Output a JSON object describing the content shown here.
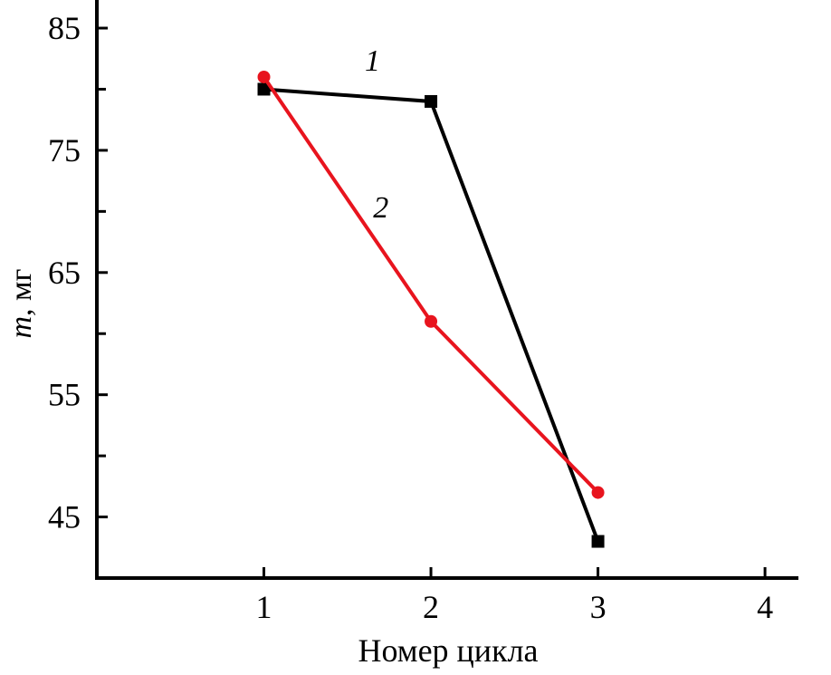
{
  "chart_data": {
    "type": "line",
    "title": "",
    "xlabel": "Номер цикла",
    "ylabel_italic": "m",
    "ylabel_rest": ", мг",
    "xlim": [
      0,
      4.2
    ],
    "ylim": [
      40,
      87.3
    ],
    "x_ticks": [
      1,
      2,
      3,
      4
    ],
    "y_ticks": [
      45,
      55,
      65,
      75,
      85
    ],
    "y_minor_ticks": [
      50,
      60,
      70,
      80
    ],
    "grid": false,
    "series": [
      {
        "label": "1",
        "color": "#000000",
        "marker": "square",
        "x": [
          1,
          2,
          3
        ],
        "y": [
          80,
          79,
          43
        ]
      },
      {
        "label": "2",
        "color": "#e8141e",
        "marker": "circle",
        "x": [
          1,
          2,
          3
        ],
        "y": [
          81,
          61,
          47
        ]
      }
    ],
    "annotations": [
      {
        "text": "1",
        "x": 1.65,
        "y": 81.5
      },
      {
        "text": "2",
        "x": 1.7,
        "y": 69.5
      }
    ]
  }
}
